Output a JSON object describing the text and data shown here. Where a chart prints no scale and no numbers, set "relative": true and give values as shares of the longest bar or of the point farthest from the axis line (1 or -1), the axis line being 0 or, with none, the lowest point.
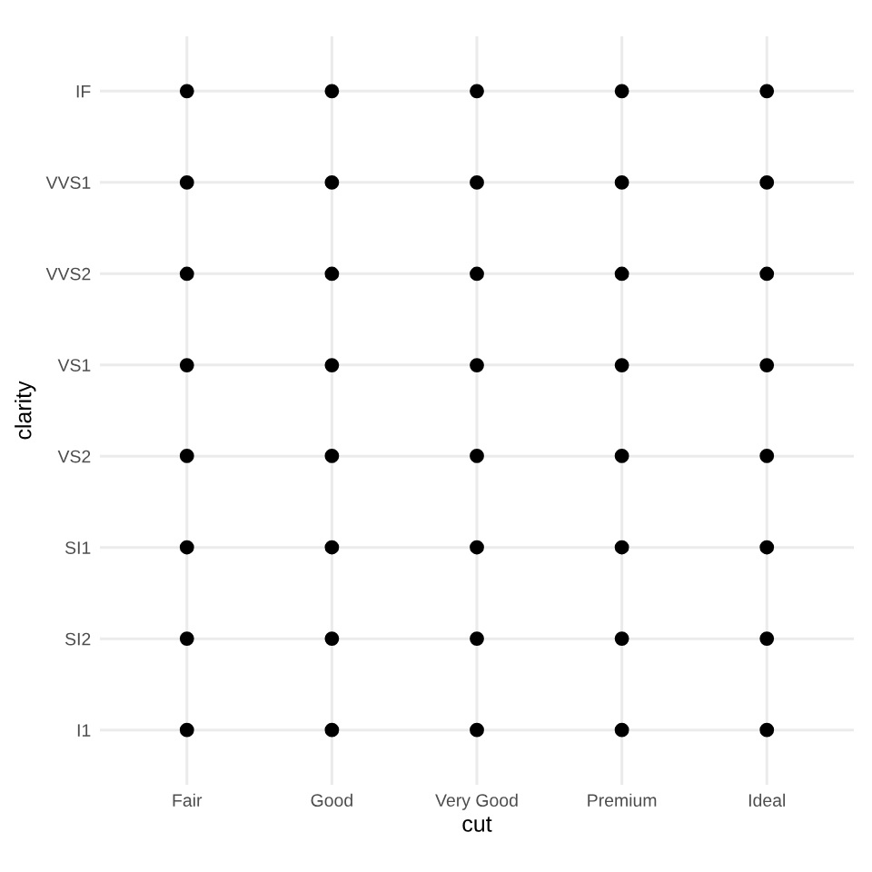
{
  "chart_data": {
    "type": "scatter",
    "xlabel": "cut",
    "ylabel": "clarity",
    "relative": true,
    "categories": [
      "Fair",
      "Good",
      "Very Good",
      "Premium",
      "Ideal"
    ],
    "y_categories": [
      "IF",
      "VVS1",
      "VVS2",
      "VS1",
      "VS2",
      "SI1",
      "SI2",
      "I1"
    ],
    "series": [
      {
        "color": "#000000",
        "x": [
          "Fair",
          "Fair",
          "Fair",
          "Fair",
          "Fair",
          "Fair",
          "Fair",
          "Fair",
          "Good",
          "Good",
          "Good",
          "Good",
          "Good",
          "Good",
          "Good",
          "Good",
          "Very Good",
          "Very Good",
          "Very Good",
          "Very Good",
          "Very Good",
          "Very Good",
          "Very Good",
          "Very Good",
          "Premium",
          "Premium",
          "Premium",
          "Premium",
          "Premium",
          "Premium",
          "Premium",
          "Premium",
          "Ideal",
          "Ideal",
          "Ideal",
          "Ideal",
          "Ideal",
          "Ideal",
          "Ideal",
          "Ideal"
        ],
        "values": [
          1,
          0.857,
          0.714,
          0.571,
          0.429,
          0.286,
          0.143,
          0,
          1,
          0.857,
          0.714,
          0.571,
          0.429,
          0.286,
          0.143,
          0,
          1,
          0.857,
          0.714,
          0.571,
          0.429,
          0.286,
          0.143,
          0,
          1,
          0.857,
          0.714,
          0.571,
          0.429,
          0.286,
          0.143,
          0,
          1,
          0.857,
          0.714,
          0.571,
          0.429,
          0.286,
          0.143,
          0
        ]
      }
    ],
    "marker": "circle",
    "grid": true
  }
}
